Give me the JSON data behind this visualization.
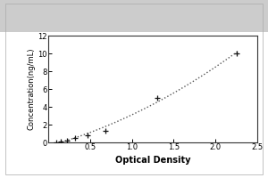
{
  "x_data": [
    0.1,
    0.15,
    0.22,
    0.32,
    0.47,
    0.68,
    1.3,
    2.25
  ],
  "y_data": [
    0.05,
    0.1,
    0.25,
    0.5,
    0.8,
    1.3,
    5.0,
    10.0
  ],
  "xlabel": "Optical Density",
  "ylabel": "Concentration(ng/mL)",
  "xlim": [
    0.0,
    2.5
  ],
  "ylim": [
    0,
    12
  ],
  "xticks": [
    0.5,
    1.0,
    1.5,
    2.0,
    2.5
  ],
  "yticks": [
    0,
    2,
    4,
    6,
    8,
    10,
    12
  ],
  "line_color": "#555555",
  "marker_color": "#111111",
  "bg_color": "#ffffff",
  "fig_bg": "#ffffff",
  "title_area_bg": "#e8e8e8"
}
